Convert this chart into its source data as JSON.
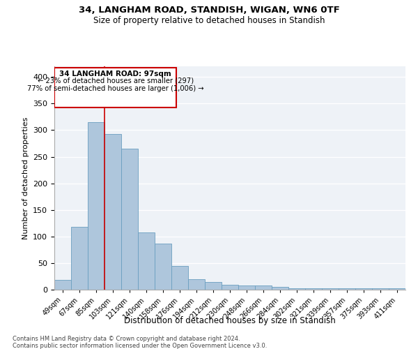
{
  "title1": "34, LANGHAM ROAD, STANDISH, WIGAN, WN6 0TF",
  "title2": "Size of property relative to detached houses in Standish",
  "xlabel": "Distribution of detached houses by size in Standish",
  "ylabel": "Number of detached properties",
  "categories": [
    "49sqm",
    "67sqm",
    "85sqm",
    "103sqm",
    "121sqm",
    "140sqm",
    "158sqm",
    "176sqm",
    "194sqm",
    "212sqm",
    "230sqm",
    "248sqm",
    "266sqm",
    "284sqm",
    "302sqm",
    "321sqm",
    "339sqm",
    "357sqm",
    "375sqm",
    "393sqm",
    "411sqm"
  ],
  "values": [
    19,
    118,
    315,
    293,
    265,
    108,
    87,
    44,
    20,
    15,
    9,
    8,
    8,
    5,
    2,
    2,
    3,
    2,
    3,
    2,
    3
  ],
  "bar_color": "#aec6dc",
  "bar_edge_color": "#6a9fc0",
  "property_line_x": 2.5,
  "annotation_text_line1": "34 LANGHAM ROAD: 97sqm",
  "annotation_text_line2": "← 23% of detached houses are smaller (297)",
  "annotation_text_line3": "77% of semi-detached houses are larger (1,006) →",
  "box_color": "#cc0000",
  "ylim": [
    0,
    420
  ],
  "yticks": [
    0,
    50,
    100,
    150,
    200,
    250,
    300,
    350,
    400
  ],
  "bg_color": "#eef2f7",
  "footnote1": "Contains HM Land Registry data © Crown copyright and database right 2024.",
  "footnote2": "Contains public sector information licensed under the Open Government Licence v3.0."
}
